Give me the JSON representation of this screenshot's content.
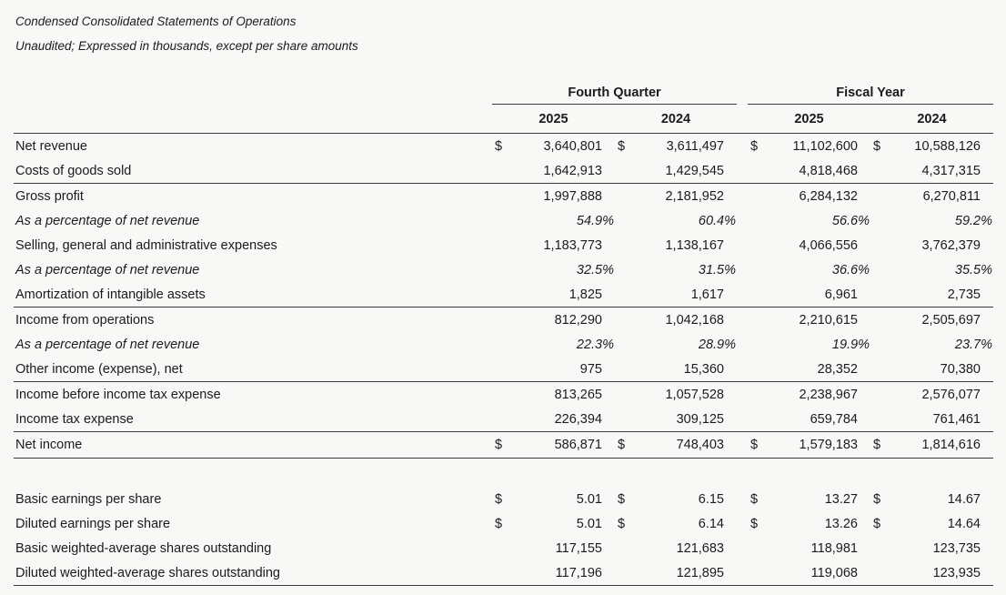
{
  "title": "Condensed Consolidated Statements of Operations",
  "subtitle": "Unaudited; Expressed in thousands, except per share amounts",
  "table": {
    "groups": [
      {
        "label": "Fourth Quarter",
        "years": [
          "2025",
          "2024"
        ]
      },
      {
        "label": "Fiscal Year",
        "years": [
          "2025",
          "2024"
        ]
      }
    ],
    "rows": [
      {
        "label": "Net revenue",
        "currency": "$",
        "values": [
          "3,640,801",
          "3,611,497",
          "11,102,600",
          "10,588,126"
        ]
      },
      {
        "label": "Costs of goods sold",
        "currency": "",
        "values": [
          "1,642,913",
          "1,429,545",
          "4,818,468",
          "4,317,315"
        ]
      },
      {
        "label": "Gross profit",
        "currency": "",
        "values": [
          "1,997,888",
          "2,181,952",
          "6,284,132",
          "6,270,811"
        ]
      },
      {
        "label": "As a percentage of net revenue",
        "currency": "",
        "values": [
          "54.9%",
          "60.4%",
          "56.6%",
          "59.2%"
        ]
      },
      {
        "label": "Selling, general and administrative expenses",
        "currency": "",
        "values": [
          "1,183,773",
          "1,138,167",
          "4,066,556",
          "3,762,379"
        ]
      },
      {
        "label": "As a percentage of net revenue",
        "currency": "",
        "values": [
          "32.5%",
          "31.5%",
          "36.6%",
          "35.5%"
        ]
      },
      {
        "label": "Amortization of intangible assets",
        "currency": "",
        "values": [
          "1,825",
          "1,617",
          "6,961",
          "2,735"
        ]
      },
      {
        "label": "Income from operations",
        "currency": "",
        "values": [
          "812,290",
          "1,042,168",
          "2,210,615",
          "2,505,697"
        ]
      },
      {
        "label": "As a percentage of net revenue",
        "currency": "",
        "values": [
          "22.3%",
          "28.9%",
          "19.9%",
          "23.7%"
        ]
      },
      {
        "label": "Other income (expense), net",
        "currency": "",
        "values": [
          "975",
          "15,360",
          "28,352",
          "70,380"
        ]
      },
      {
        "label": "Income before income tax expense",
        "currency": "",
        "values": [
          "813,265",
          "1,057,528",
          "2,238,967",
          "2,576,077"
        ]
      },
      {
        "label": "Income tax expense",
        "currency": "",
        "values": [
          "226,394",
          "309,125",
          "659,784",
          "761,461"
        ]
      },
      {
        "label": "Net income",
        "currency": "$",
        "values": [
          "586,871",
          "748,403",
          "1,579,183",
          "1,814,616"
        ]
      },
      {
        "label": "Basic earnings per share",
        "currency": "$",
        "values": [
          "5.01",
          "6.15",
          "13.27",
          "14.67"
        ]
      },
      {
        "label": "Diluted earnings per share",
        "currency": "$",
        "values": [
          "5.01",
          "6.14",
          "13.26",
          "14.64"
        ]
      },
      {
        "label": "Basic weighted-average shares outstanding",
        "currency": "",
        "values": [
          "117,155",
          "121,683",
          "118,981",
          "123,735"
        ]
      },
      {
        "label": "Diluted weighted-average shares outstanding",
        "currency": "",
        "values": [
          "117,196",
          "121,895",
          "119,068",
          "123,935"
        ]
      }
    ]
  }
}
